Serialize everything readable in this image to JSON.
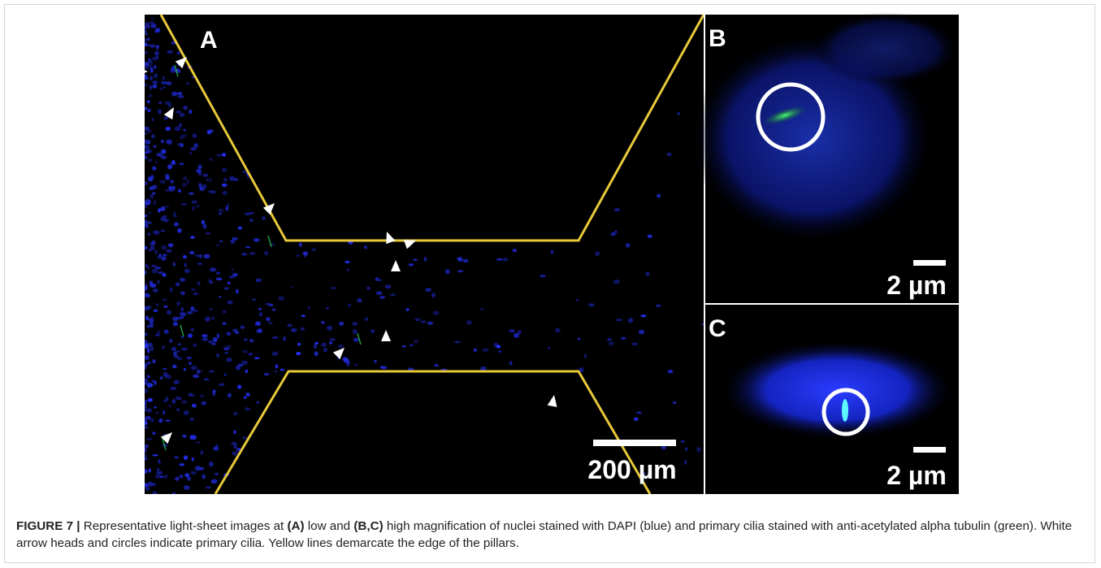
{
  "figure": {
    "panels": [
      {
        "label": "A",
        "scale_bar": "200 µm"
      },
      {
        "label": "B",
        "scale_bar": "2 µm"
      },
      {
        "label": "C",
        "scale_bar": "2 µm"
      }
    ],
    "caption": {
      "label": "FIGURE 7 |",
      "segments": [
        " Representative light-sheet images at ",
        "(A)",
        " low and ",
        "(B,C)",
        " high magnification of nuclei stained with DAPI (blue) and primary cilia stained with anti-acetylated alpha tubulin (green). White arrow heads and circles indicate primary cilia. Yellow lines demarcate the edge of the pillars."
      ]
    }
  }
}
